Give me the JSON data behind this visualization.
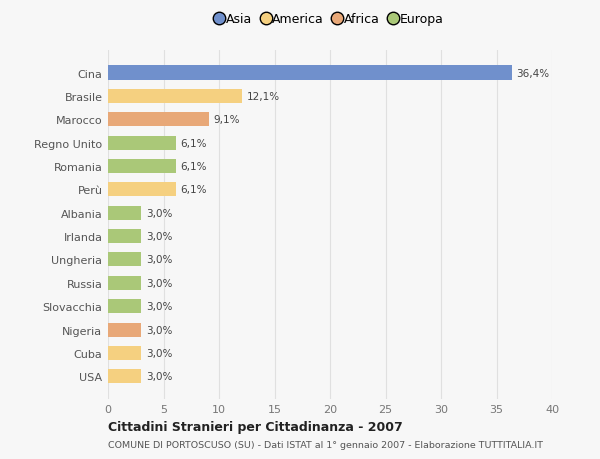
{
  "categories": [
    "Cina",
    "Brasile",
    "Marocco",
    "Regno Unito",
    "Romania",
    "Perù",
    "Albania",
    "Irlanda",
    "Ungheria",
    "Russia",
    "Slovacchia",
    "Nigeria",
    "Cuba",
    "USA"
  ],
  "values": [
    36.4,
    12.1,
    9.1,
    6.1,
    6.1,
    6.1,
    3.0,
    3.0,
    3.0,
    3.0,
    3.0,
    3.0,
    3.0,
    3.0
  ],
  "labels": [
    "36,4%",
    "12,1%",
    "9,1%",
    "6,1%",
    "6,1%",
    "6,1%",
    "3,0%",
    "3,0%",
    "3,0%",
    "3,0%",
    "3,0%",
    "3,0%",
    "3,0%",
    "3,0%"
  ],
  "colors": [
    "#7090cc",
    "#f5d080",
    "#e8a878",
    "#aac878",
    "#aac878",
    "#f5d080",
    "#aac878",
    "#aac878",
    "#aac878",
    "#aac878",
    "#aac878",
    "#e8a878",
    "#f5d080",
    "#f5d080"
  ],
  "legend_labels": [
    "Asia",
    "America",
    "Africa",
    "Europa"
  ],
  "legend_colors": [
    "#7090cc",
    "#f5d080",
    "#e8a878",
    "#aac878"
  ],
  "title": "Cittadini Stranieri per Cittadinanza - 2007",
  "subtitle": "COMUNE DI PORTOSCUSO (SU) - Dati ISTAT al 1° gennaio 2007 - Elaborazione TUTTITALIA.IT",
  "xlim": [
    0,
    40
  ],
  "xticks": [
    0,
    5,
    10,
    15,
    20,
    25,
    30,
    35,
    40
  ],
  "background_color": "#f7f7f7",
  "grid_color": "#e0e0e0",
  "bar_height": 0.6
}
